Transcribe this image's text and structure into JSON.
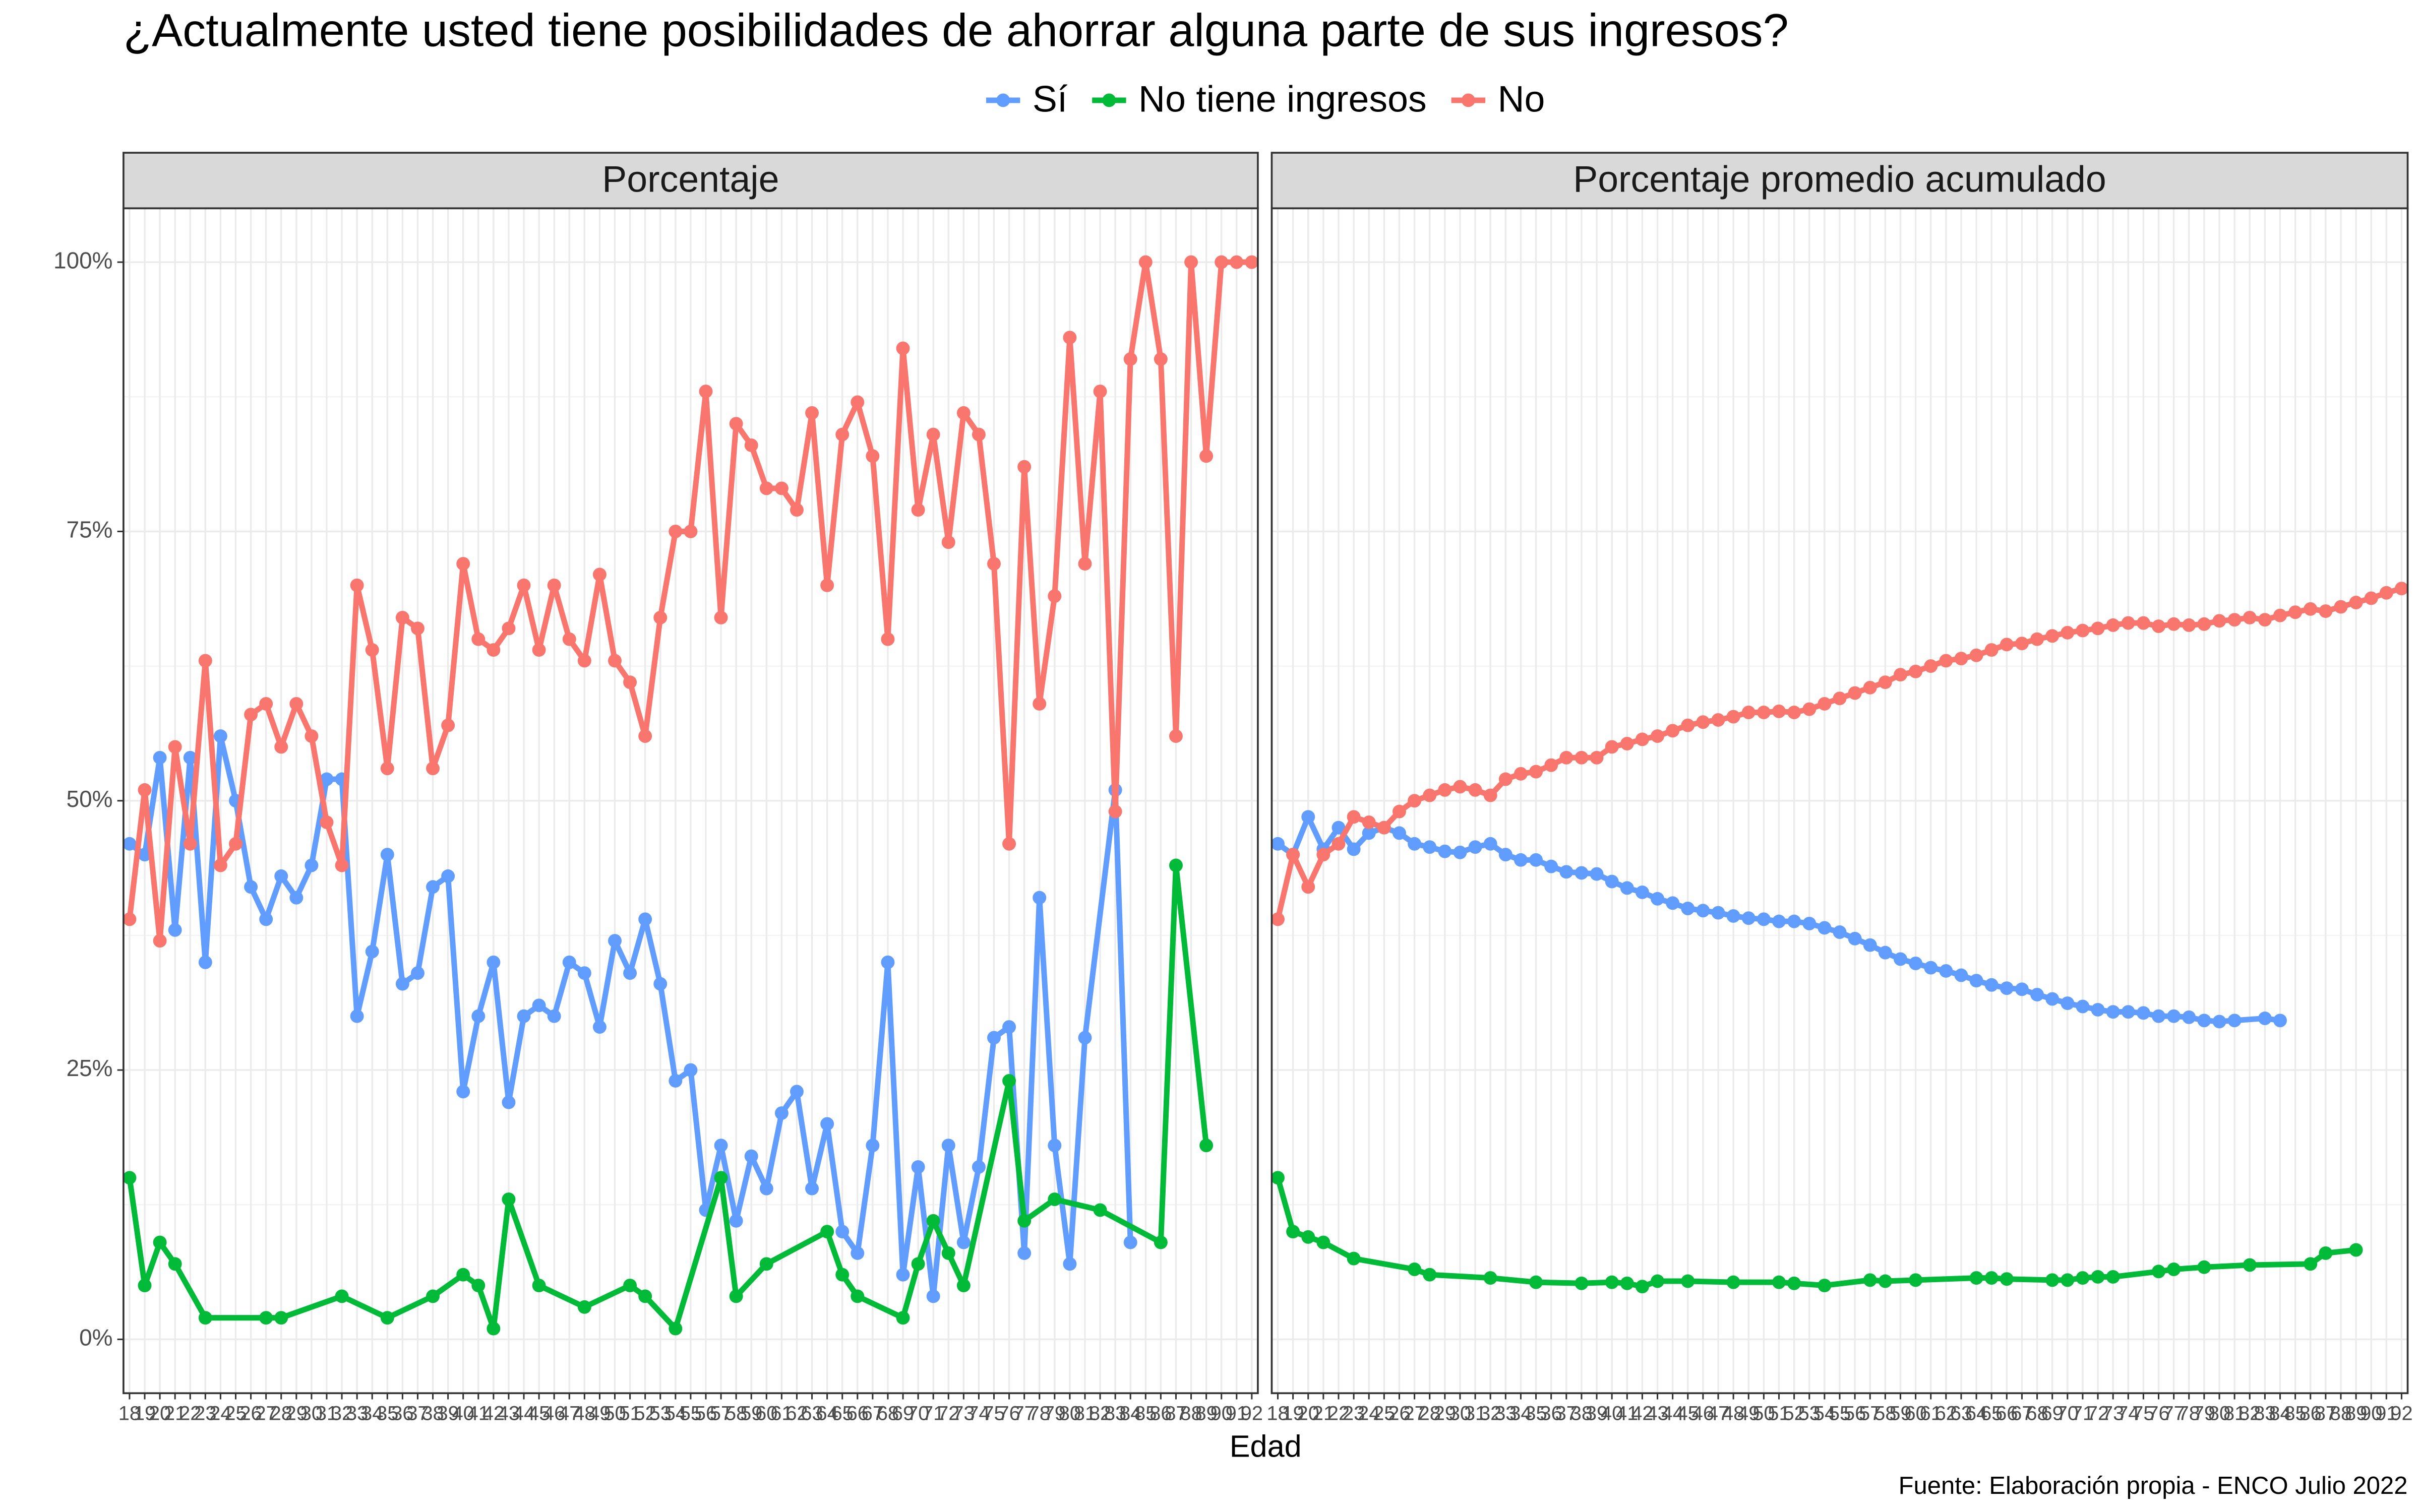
{
  "title": "¿Actualmente usted tiene posibilidades de ahorrar alguna parte de sus ingresos?",
  "xlabel": "Edad",
  "caption": "Fuente: Elaboración propia - ENCO Julio 2022",
  "chart_data": [
    {
      "type": "line",
      "title": "Porcentaje",
      "xlim": [
        17.6,
        92.4
      ],
      "ylim": [
        -5,
        105
      ],
      "xticks": [
        18,
        19,
        20,
        21,
        22,
        23,
        24,
        25,
        26,
        27,
        28,
        29,
        30,
        31,
        32,
        33,
        34,
        35,
        36,
        37,
        38,
        39,
        40,
        41,
        42,
        43,
        44,
        45,
        46,
        47,
        48,
        49,
        50,
        51,
        52,
        53,
        54,
        55,
        56,
        57,
        58,
        59,
        60,
        61,
        62,
        63,
        64,
        65,
        66,
        67,
        68,
        69,
        70,
        71,
        72,
        73,
        74,
        75,
        76,
        77,
        78,
        79,
        80,
        81,
        82,
        83,
        84,
        85,
        86,
        87,
        88,
        89,
        90,
        91,
        92
      ],
      "yticks": [
        {
          "value": 0,
          "label": "0%"
        },
        {
          "value": 25,
          "label": "25%"
        },
        {
          "value": 50,
          "label": "50%"
        },
        {
          "value": 75,
          "label": "75%"
        },
        {
          "value": 100,
          "label": "100%"
        }
      ],
      "grid": true,
      "series": [
        {
          "name": "Sí",
          "color": "#619CFF",
          "x": [
            18,
            19,
            20,
            21,
            22,
            23,
            24,
            25,
            26,
            27,
            28,
            29,
            30,
            31,
            32,
            33,
            34,
            35,
            36,
            37,
            38,
            39,
            40,
            41,
            42,
            43,
            44,
            45,
            46,
            47,
            48,
            49,
            50,
            51,
            52,
            53,
            54,
            55,
            56,
            57,
            58,
            59,
            60,
            61,
            62,
            63,
            64,
            65,
            66,
            67,
            68,
            69,
            70,
            71,
            72,
            73,
            74,
            75,
            76,
            77,
            78,
            79,
            80,
            81,
            83,
            84
          ],
          "values": [
            46,
            45,
            54,
            38,
            54,
            35,
            56,
            50,
            42,
            39,
            43,
            41,
            44,
            52,
            52,
            30,
            36,
            45,
            33,
            34,
            42,
            43,
            23,
            30,
            35,
            22,
            30,
            31,
            30,
            35,
            34,
            29,
            37,
            34,
            39,
            33,
            24,
            25,
            12,
            18,
            11,
            17,
            14,
            21,
            23,
            14,
            20,
            10,
            8,
            18,
            35,
            6,
            16,
            4,
            18,
            9,
            16,
            28,
            29,
            8,
            41,
            18,
            7,
            28,
            51,
            9
          ]
        },
        {
          "name": "No tiene ingresos",
          "color": "#00BA38",
          "x": [
            18,
            19,
            20,
            21,
            23,
            27,
            28,
            32,
            35,
            38,
            40,
            41,
            42,
            43,
            45,
            48,
            51,
            52,
            54,
            57,
            58,
            60,
            64,
            65,
            66,
            69,
            70,
            71,
            72,
            73,
            76,
            77,
            79,
            82,
            86,
            87,
            89
          ],
          "values": [
            15,
            5,
            9,
            7,
            2,
            2,
            2,
            4,
            2,
            4,
            6,
            5,
            1,
            13,
            5,
            3,
            5,
            4,
            1,
            15,
            4,
            7,
            10,
            6,
            4,
            2,
            7,
            11,
            8,
            5,
            24,
            11,
            13,
            12,
            9,
            44,
            18
          ]
        },
        {
          "name": "No",
          "color": "#F8766D",
          "x": [
            18,
            19,
            20,
            21,
            22,
            23,
            24,
            25,
            26,
            27,
            28,
            29,
            30,
            31,
            32,
            33,
            34,
            35,
            36,
            37,
            38,
            39,
            40,
            41,
            42,
            43,
            44,
            45,
            46,
            47,
            48,
            49,
            50,
            51,
            52,
            53,
            54,
            55,
            56,
            57,
            58,
            59,
            60,
            61,
            62,
            63,
            64,
            65,
            66,
            67,
            68,
            69,
            70,
            71,
            72,
            73,
            74,
            75,
            76,
            77,
            78,
            79,
            80,
            81,
            82,
            83,
            84,
            85,
            86,
            87,
            88,
            89,
            90,
            91,
            92
          ],
          "values": [
            39,
            51,
            37,
            55,
            46,
            63,
            44,
            46,
            58,
            59,
            55,
            59,
            56,
            48,
            44,
            70,
            64,
            53,
            67,
            66,
            53,
            57,
            72,
            65,
            64,
            66,
            70,
            64,
            70,
            65,
            63,
            71,
            63,
            61,
            56,
            67,
            75,
            75,
            88,
            67,
            85,
            83,
            79,
            79,
            77,
            86,
            70,
            84,
            87,
            82,
            65,
            92,
            77,
            84,
            74,
            86,
            84,
            72,
            46,
            81,
            59,
            69,
            93,
            72,
            88,
            49,
            91,
            100,
            91,
            56,
            100,
            82,
            100,
            100,
            100
          ]
        }
      ]
    },
    {
      "type": "line",
      "title": "Porcentaje promedio acumulado",
      "xlim": [
        17.6,
        92.4
      ],
      "ylim": [
        -5,
        105
      ],
      "xticks": [
        18,
        19,
        20,
        21,
        22,
        23,
        24,
        25,
        26,
        27,
        28,
        29,
        30,
        31,
        32,
        33,
        34,
        35,
        36,
        37,
        38,
        39,
        40,
        41,
        42,
        43,
        44,
        45,
        46,
        47,
        48,
        49,
        50,
        51,
        52,
        53,
        54,
        55,
        56,
        57,
        58,
        59,
        60,
        61,
        62,
        63,
        64,
        65,
        66,
        67,
        68,
        69,
        70,
        71,
        72,
        73,
        74,
        75,
        76,
        77,
        78,
        79,
        80,
        81,
        82,
        83,
        84,
        85,
        86,
        87,
        88,
        89,
        90,
        91,
        92
      ],
      "yticks": [
        0,
        25,
        50,
        75,
        100
      ],
      "grid": true,
      "series": [
        {
          "color": "#619CFF",
          "x": [
            18,
            19,
            20,
            21,
            22,
            23,
            24,
            25,
            26,
            27,
            28,
            29,
            30,
            31,
            32,
            33,
            34,
            35,
            36,
            37,
            38,
            39,
            40,
            41,
            42,
            43,
            44,
            45,
            46,
            47,
            48,
            49,
            50,
            51,
            52,
            53,
            54,
            55,
            56,
            57,
            58,
            59,
            60,
            61,
            62,
            63,
            64,
            65,
            66,
            67,
            68,
            69,
            70,
            71,
            72,
            73,
            74,
            75,
            76,
            77,
            78,
            79,
            80,
            81,
            83,
            84
          ],
          "values": [
            46,
            45,
            48.5,
            45.5,
            47.5,
            45.5,
            47,
            47.5,
            47,
            46,
            45.7,
            45.3,
            45.2,
            45.7,
            46,
            45,
            44.5,
            44.5,
            43.9,
            43.4,
            43.3,
            43.2,
            42.5,
            41.9,
            41.5,
            40.9,
            40.5,
            40,
            39.8,
            39.6,
            39.3,
            39.1,
            39,
            38.8,
            38.8,
            38.6,
            38.2,
            37.8,
            37.2,
            36.6,
            35.9,
            35.3,
            34.9,
            34.5,
            34.2,
            33.8,
            33.3,
            32.9,
            32.6,
            32.5,
            32,
            31.6,
            31.2,
            30.9,
            30.6,
            30.4,
            30.4,
            30.3,
            30,
            30,
            29.9,
            29.6,
            29.5,
            29.6,
            29.8,
            29.6
          ]
        },
        {
          "color": "#00BA38",
          "x": [
            18,
            19,
            20,
            21,
            23,
            27,
            28,
            32,
            35,
            38,
            40,
            41,
            42,
            43,
            45,
            48,
            51,
            52,
            54,
            57,
            58,
            60,
            64,
            65,
            66,
            69,
            70,
            71,
            72,
            73,
            76,
            77,
            79,
            82,
            86,
            87,
            89
          ],
          "values": [
            15,
            10,
            9.5,
            9,
            7.5,
            6.5,
            6,
            5.7,
            5.3,
            5.2,
            5.3,
            5.2,
            4.9,
            5.4,
            5.4,
            5.3,
            5.3,
            5.2,
            5,
            5.5,
            5.4,
            5.5,
            5.7,
            5.7,
            5.6,
            5.5,
            5.5,
            5.7,
            5.8,
            5.8,
            6.3,
            6.5,
            6.7,
            6.9,
            7,
            8,
            8.3
          ]
        },
        {
          "color": "#F8766D",
          "x": [
            18,
            19,
            20,
            21,
            22,
            23,
            24,
            25,
            26,
            27,
            28,
            29,
            30,
            31,
            32,
            33,
            34,
            35,
            36,
            37,
            38,
            39,
            40,
            41,
            42,
            43,
            44,
            45,
            46,
            47,
            48,
            49,
            50,
            51,
            52,
            53,
            54,
            55,
            56,
            57,
            58,
            59,
            60,
            61,
            62,
            63,
            64,
            65,
            66,
            67,
            68,
            69,
            70,
            71,
            72,
            73,
            74,
            75,
            76,
            77,
            78,
            79,
            80,
            81,
            82,
            83,
            84,
            85,
            86,
            87,
            88,
            89,
            90,
            91,
            92
          ],
          "values": [
            39,
            45,
            42,
            45,
            46,
            48.5,
            48,
            47.5,
            49,
            50,
            50.5,
            51,
            51.3,
            51,
            50.5,
            52,
            52.5,
            52.7,
            53.3,
            54,
            54,
            54,
            55,
            55.3,
            55.7,
            56,
            56.5,
            57,
            57.3,
            57.5,
            57.8,
            58.2,
            58.2,
            58.3,
            58.2,
            58.5,
            59,
            59.5,
            60,
            60.5,
            61,
            61.7,
            62,
            62.5,
            63,
            63.2,
            63.5,
            64,
            64.5,
            64.6,
            65,
            65.3,
            65.6,
            65.8,
            66,
            66.3,
            66.5,
            66.5,
            66.2,
            66.4,
            66.3,
            66.4,
            66.7,
            66.8,
            67,
            66.8,
            67.2,
            67.5,
            67.8,
            67.6,
            68,
            68.4,
            68.8,
            69.3,
            69.7
          ]
        }
      ]
    }
  ]
}
